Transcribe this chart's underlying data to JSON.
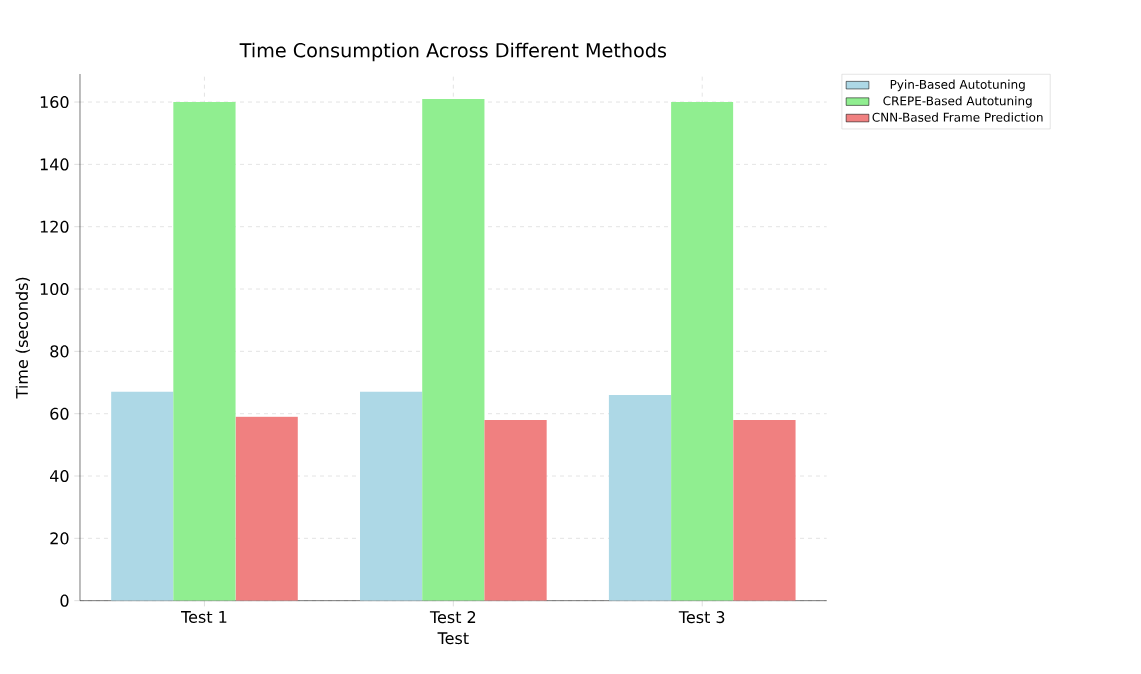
{
  "chart_data": {
    "type": "bar",
    "title": "Time Consumption Across Different Methods",
    "xlabel": "Test",
    "ylabel": "Time (seconds)",
    "categories": [
      "Test 1",
      "Test 2",
      "Test 3"
    ],
    "series": [
      {
        "name": "Pyin-Based Autotuning",
        "color": "#add8e6",
        "values": [
          67,
          67,
          66
        ]
      },
      {
        "name": "CREPE-Based Autotuning",
        "color": "#90ee90",
        "values": [
          160,
          161,
          160
        ]
      },
      {
        "name": "CNN-Based Frame Prediction",
        "color": "#f08080",
        "values": [
          59,
          58,
          58
        ]
      }
    ],
    "ylim": [
      0,
      169
    ],
    "yticks": [
      0,
      20,
      40,
      60,
      80,
      100,
      120,
      140,
      160
    ],
    "grid": true,
    "legend": "top right"
  }
}
